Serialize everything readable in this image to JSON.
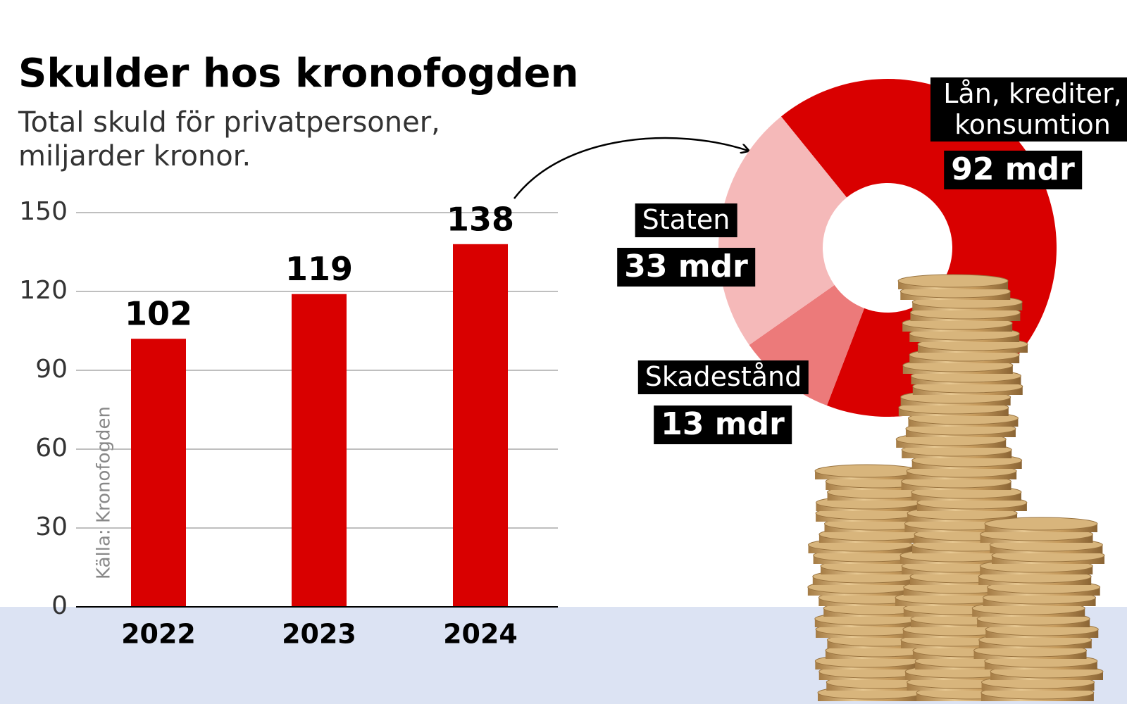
{
  "chart_data": [
    {
      "type": "bar",
      "title": "Skulder hos kronofogden",
      "subtitle": [
        "Total skuld för privatpersoner,",
        "miljarder kronor."
      ],
      "source": "Källa: Kronofogden",
      "categories": [
        "2022",
        "2023",
        "2024"
      ],
      "values": [
        102,
        119,
        138
      ],
      "color": "#d90000",
      "ylim": [
        0,
        150
      ],
      "yticks": [
        0,
        30,
        60,
        90,
        120,
        150
      ],
      "grid": true
    },
    {
      "type": "donut",
      "categories": [
        "Lån, krediter, konsumtion",
        "Skadestånd",
        "Staten"
      ],
      "values": [
        92,
        13,
        33
      ],
      "value_labels": [
        "92 mdr",
        "13 mdr",
        "33 mdr"
      ],
      "colors": [
        "#d90000",
        "#ec7a7a",
        "#f5b9b9"
      ]
    }
  ]
}
